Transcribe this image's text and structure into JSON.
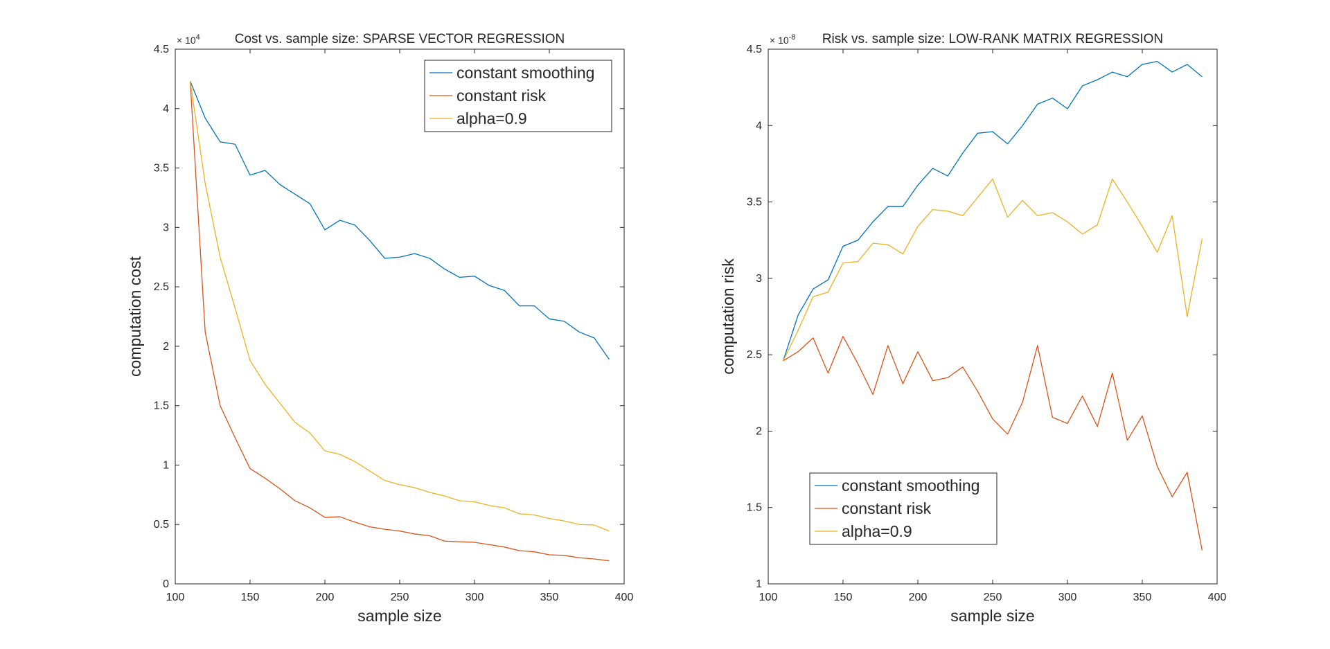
{
  "chart_data": [
    {
      "type": "line",
      "title": "Cost vs. sample size: SPARSE VECTOR REGRESSION",
      "xlabel": "sample size",
      "ylabel": "computation cost",
      "xlim": [
        100,
        400
      ],
      "ylim": [
        0,
        4.5
      ],
      "xticks": [
        "100",
        "150",
        "200",
        "250",
        "300",
        "350",
        "400"
      ],
      "yticks": [
        "0",
        "0.5",
        "1",
        "1.5",
        "2",
        "2.5",
        "3",
        "3.5",
        "4",
        "4.5"
      ],
      "y_exponent": {
        "base": "× 10",
        "power": "4"
      },
      "grid": false,
      "legend_position": "top-right",
      "x": [
        110,
        120,
        130,
        140,
        150,
        160,
        170,
        180,
        190,
        200,
        210,
        220,
        230,
        240,
        250,
        260,
        270,
        280,
        290,
        300,
        310,
        320,
        330,
        340,
        350,
        360,
        370,
        380,
        390
      ],
      "series": [
        {
          "name": "constant smoothing",
          "color": "#0072BD",
          "values": [
            4.23,
            3.92,
            3.72,
            3.7,
            3.44,
            3.48,
            3.36,
            3.28,
            3.2,
            2.98,
            3.06,
            3.02,
            2.89,
            2.74,
            2.75,
            2.78,
            2.74,
            2.65,
            2.58,
            2.59,
            2.51,
            2.47,
            2.34,
            2.34,
            2.23,
            2.21,
            2.12,
            2.07,
            1.89
          ]
        },
        {
          "name": "constant risk",
          "color": "#D95319",
          "values": [
            4.23,
            2.12,
            1.5,
            1.23,
            0.97,
            0.89,
            0.8,
            0.7,
            0.64,
            0.56,
            0.565,
            0.52,
            0.48,
            0.46,
            0.445,
            0.42,
            0.405,
            0.36,
            0.355,
            0.35,
            0.33,
            0.31,
            0.28,
            0.27,
            0.245,
            0.24,
            0.22,
            0.21,
            0.195
          ]
        },
        {
          "name": "alpha=0.9",
          "color": "#EDB120",
          "values": [
            4.23,
            3.37,
            2.75,
            2.32,
            1.88,
            1.68,
            1.52,
            1.36,
            1.27,
            1.12,
            1.09,
            1.03,
            0.95,
            0.87,
            0.835,
            0.81,
            0.77,
            0.74,
            0.7,
            0.69,
            0.66,
            0.64,
            0.59,
            0.58,
            0.55,
            0.53,
            0.5,
            0.495,
            0.445
          ]
        }
      ]
    },
    {
      "type": "line",
      "title": "Risk vs. sample size: LOW-RANK MATRIX REGRESSION",
      "xlabel": "sample size",
      "ylabel": "computation risk",
      "xlim": [
        100,
        400
      ],
      "ylim": [
        1,
        4.5
      ],
      "xticks": [
        "100",
        "150",
        "200",
        "250",
        "300",
        "350",
        "400"
      ],
      "yticks": [
        "1",
        "1.5",
        "2",
        "2.5",
        "3",
        "3.5",
        "4",
        "4.5"
      ],
      "y_exponent": {
        "base": "× 10",
        "power": "-8"
      },
      "grid": false,
      "legend_position": "bottom-left",
      "x": [
        110,
        120,
        130,
        140,
        150,
        160,
        170,
        180,
        190,
        200,
        210,
        220,
        230,
        240,
        250,
        260,
        270,
        280,
        290,
        300,
        310,
        320,
        330,
        340,
        350,
        360,
        370,
        380,
        390
      ],
      "series": [
        {
          "name": "constant smoothing",
          "color": "#0072BD",
          "values": [
            2.46,
            2.76,
            2.93,
            2.99,
            3.21,
            3.25,
            3.37,
            3.47,
            3.47,
            3.61,
            3.72,
            3.67,
            3.82,
            3.95,
            3.96,
            3.88,
            4.0,
            4.14,
            4.18,
            4.11,
            4.26,
            4.3,
            4.35,
            4.32,
            4.4,
            4.42,
            4.35,
            4.4,
            4.32
          ]
        },
        {
          "name": "constant risk",
          "color": "#D95319",
          "values": [
            2.46,
            2.52,
            2.61,
            2.38,
            2.62,
            2.44,
            2.24,
            2.56,
            2.31,
            2.52,
            2.33,
            2.35,
            2.42,
            2.26,
            2.08,
            1.98,
            2.19,
            2.56,
            2.09,
            2.05,
            2.23,
            2.03,
            2.38,
            1.94,
            2.1,
            1.77,
            1.57,
            1.73,
            1.22
          ]
        },
        {
          "name": "alpha=0.9",
          "color": "#EDB120",
          "values": [
            2.46,
            2.66,
            2.88,
            2.91,
            3.1,
            3.11,
            3.23,
            3.22,
            3.16,
            3.34,
            3.45,
            3.44,
            3.41,
            3.53,
            3.65,
            3.4,
            3.51,
            3.41,
            3.43,
            3.37,
            3.29,
            3.35,
            3.65,
            3.5,
            3.34,
            3.17,
            3.41,
            2.75,
            3.26
          ]
        }
      ]
    }
  ]
}
